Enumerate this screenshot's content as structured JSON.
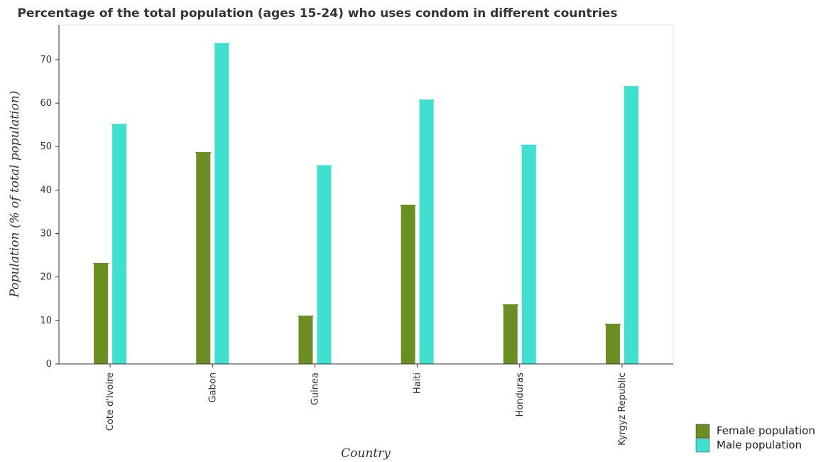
{
  "chart_data": {
    "type": "bar",
    "title": "Percentage of the total population (ages 15-24) who uses condom in different countries",
    "xlabel": "Country",
    "ylabel": "Population (% of total population)",
    "categories": [
      "Cote d'Ivoire",
      "Gabon",
      "Guinea",
      "Haiti",
      "Honduras",
      "Kyrgyz Republic"
    ],
    "series": [
      {
        "name": "Female population",
        "color": "#6b8e23",
        "values": [
          23.1,
          48.6,
          11.0,
          36.5,
          13.6,
          9.1
        ]
      },
      {
        "name": "Male population",
        "color": "#40e0d0",
        "values": [
          55.1,
          73.7,
          45.6,
          60.7,
          50.3,
          63.8
        ]
      }
    ],
    "ylim": [
      0,
      78
    ],
    "yticks": [
      0,
      10,
      20,
      30,
      40,
      50,
      60,
      70
    ],
    "legend": "bottom-right",
    "grid": false
  }
}
